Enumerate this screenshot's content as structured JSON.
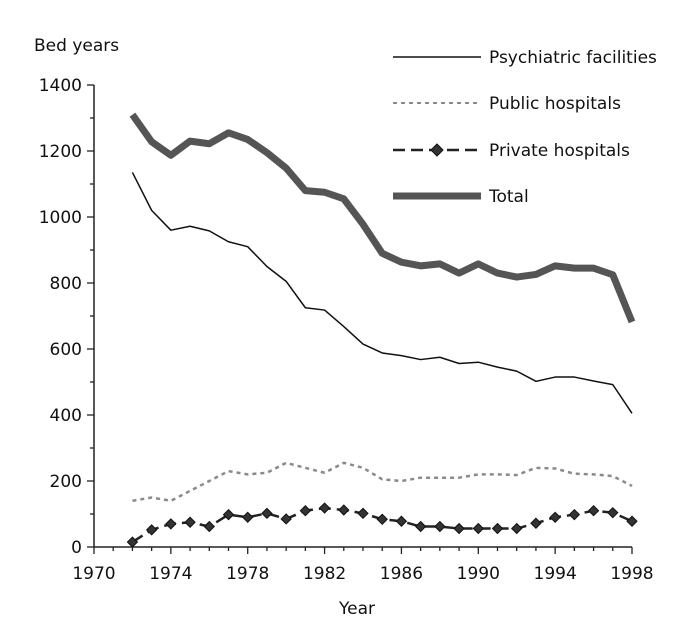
{
  "chart_data": {
    "type": "line",
    "title": "",
    "ylabel": "Bed years",
    "xlabel": "Year",
    "xlim": [
      1970,
      1998
    ],
    "ylim": [
      0,
      1400
    ],
    "xticks": [
      1970,
      1974,
      1978,
      1982,
      1986,
      1990,
      1994,
      1998
    ],
    "yticks": [
      0,
      200,
      400,
      600,
      800,
      1000,
      1200,
      1400
    ],
    "grid": false,
    "legend_position": "top-right",
    "x": [
      1972,
      1973,
      1974,
      1975,
      1976,
      1977,
      1978,
      1979,
      1980,
      1981,
      1982,
      1983,
      1984,
      1985,
      1986,
      1987,
      1988,
      1989,
      1990,
      1991,
      1992,
      1993,
      1994,
      1995,
      1996,
      1997,
      1998
    ],
    "series": [
      {
        "name": "Psychiatric facilities",
        "style": "thin-solid",
        "color": "#111111",
        "values": [
          1135,
          1020,
          960,
          972,
          958,
          925,
          910,
          850,
          805,
          725,
          718,
          668,
          615,
          588,
          580,
          568,
          575,
          556,
          560,
          545,
          533,
          502,
          515,
          515,
          503,
          492,
          405
        ]
      },
      {
        "name": "Public hospitals",
        "style": "dotted",
        "color": "#8a8a8a",
        "values": [
          140,
          150,
          140,
          170,
          200,
          230,
          220,
          225,
          255,
          240,
          225,
          255,
          240,
          205,
          200,
          210,
          210,
          210,
          220,
          220,
          218,
          240,
          238,
          222,
          220,
          215,
          185
        ]
      },
      {
        "name": "Private hospitals",
        "style": "dashed-diamond",
        "color": "#222222",
        "values": [
          15,
          52,
          70,
          75,
          62,
          98,
          90,
          102,
          85,
          110,
          118,
          112,
          102,
          84,
          78,
          62,
          62,
          56,
          56,
          56,
          56,
          72,
          90,
          98,
          110,
          104,
          78
        ]
      },
      {
        "name": "Total",
        "style": "thick-solid",
        "color": "#555555",
        "values": [
          1310,
          1228,
          1187,
          1230,
          1222,
          1255,
          1235,
          1195,
          1148,
          1080,
          1075,
          1055,
          978,
          890,
          863,
          852,
          858,
          830,
          858,
          830,
          818,
          826,
          852,
          845,
          845,
          825,
          682
        ]
      }
    ]
  }
}
